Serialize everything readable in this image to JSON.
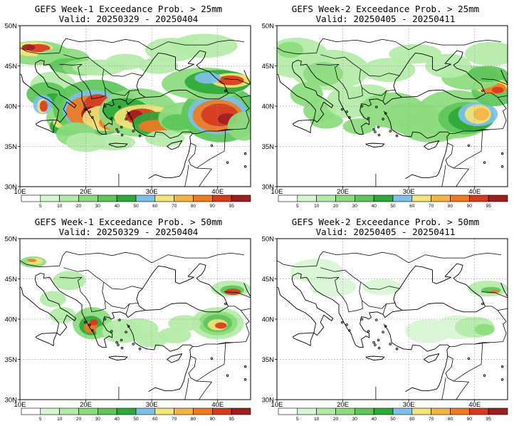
{
  "colors": {
    "land_outline": "#000000",
    "grid": "#9a9a9a",
    "levels": [
      "#ffffff",
      "#d8f5d2",
      "#b4eaa8",
      "#8cdb7e",
      "#5dc55a",
      "#2fa83a",
      "#7fbfe8",
      "#f4e27a",
      "#f4b445",
      "#ee7a22",
      "#d63a1e",
      "#9e1f1f"
    ]
  },
  "colorbar": {
    "labels": [
      "5",
      "10",
      "20",
      "30",
      "40",
      "50",
      "60",
      "70",
      "80",
      "90",
      "95"
    ]
  },
  "axes": {
    "lat_labels": [
      "50N",
      "45N",
      "40N",
      "35N",
      "30N"
    ],
    "lon_labels": [
      "10E",
      "20E",
      "30E",
      "40E"
    ]
  },
  "panels": [
    {
      "title": "GEFS Week-1 Exceedance Prob. > 25mm",
      "valid": "Valid: 20250329 - 20250404"
    },
    {
      "title": "GEFS Week-2 Exceedance Prob. > 25mm",
      "valid": "Valid: 20250405 - 20250411"
    },
    {
      "title": "GEFS Week-1 Exceedance Prob. > 50mm",
      "valid": "Valid: 20250329 - 20250404"
    },
    {
      "title": "GEFS Week-2 Exceedance Prob. > 50mm",
      "valid": "Valid: 20250405 - 20250411"
    }
  ]
}
